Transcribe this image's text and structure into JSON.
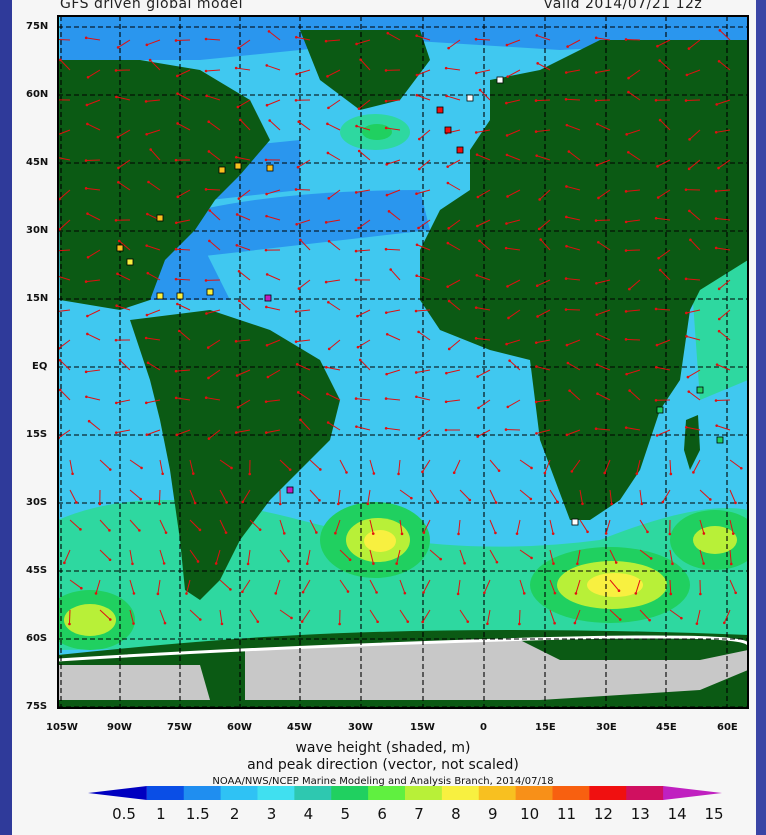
{
  "header": {
    "left_title": "GFS driven global model",
    "right_title": "valid 2014/07/21 12z"
  },
  "axes": {
    "lat_labels": [
      "75N",
      "60N",
      "45N",
      "30N",
      "15N",
      "EQ",
      "15S",
      "30S",
      "45S",
      "60S",
      "75S"
    ],
    "lon_labels": [
      "105W",
      "90W",
      "75W",
      "60W",
      "45W",
      "30W",
      "15W",
      "0",
      "15E",
      "30E",
      "45E",
      "60E"
    ]
  },
  "captions": {
    "line1": "wave height (shaded, m)",
    "line2": "and peak direction (vector, not scaled)",
    "credit": "NOAA/NWS/NCEP Marine Modeling and Analysis Branch, 2014/07/18"
  },
  "colorbar": {
    "labels": [
      "0.5",
      "1",
      "1.5",
      "2",
      "3",
      "4",
      "5",
      "6",
      "7",
      "8",
      "9",
      "10",
      "11",
      "12",
      "13",
      "14",
      "15"
    ],
    "colors": [
      "#0000c0",
      "#0a4ee6",
      "#1f8ef0",
      "#2fc2f4",
      "#40e0f0",
      "#2ec8b0",
      "#20d060",
      "#60f040",
      "#b8f038",
      "#f8f040",
      "#f8c020",
      "#f89018",
      "#f86010",
      "#f01010",
      "#d01060",
      "#c020c0"
    ]
  },
  "map_colors": {
    "land": "#0b5a14",
    "ice": "#c8c8c8",
    "ocean_low": "#2a96ee",
    "ocean_mid": "#40c8f0",
    "ocean_high": "#2ed8a0",
    "swell_core": "#f8f040",
    "vector": "#e01010"
  }
}
